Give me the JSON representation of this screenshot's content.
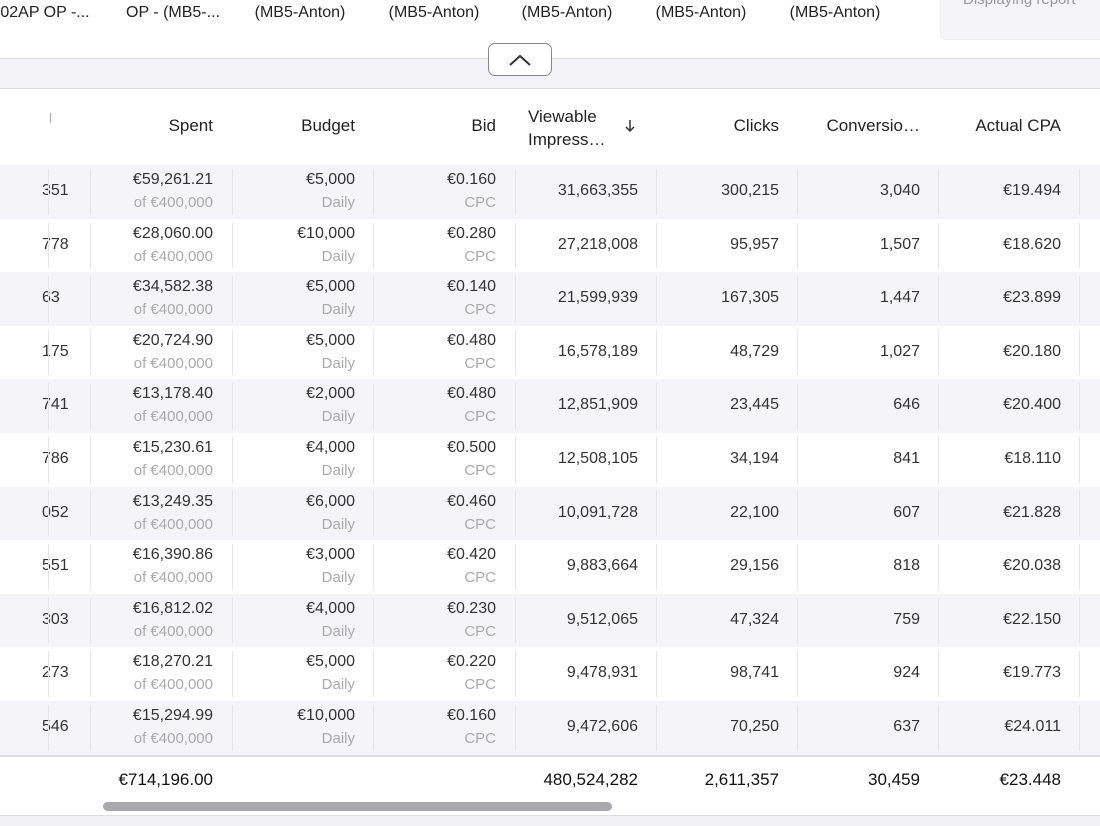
{
  "tabs": [
    "02AP OP -...",
    "OP - (MB5-...",
    "(MB5-Anton)",
    "(MB5-Anton)",
    "(MB5-Anton)",
    "(MB5-Anton)",
    "(MB5-Anton)"
  ],
  "report_note": "Displaying report",
  "table": {
    "headers": {
      "spent": "Spent",
      "budget": "Budget",
      "bid": "Bid",
      "impressions": "Viewable Impress…",
      "clicks": "Clicks",
      "conversions": "Conversio…",
      "cpa": "Actual CPA"
    },
    "rows": [
      {
        "id": "351",
        "spent": "€59,261.21",
        "spent_of": "of €400,000",
        "budget": "€5,000",
        "budget_type": "Daily",
        "bid": "€0.160",
        "bid_type": "CPC",
        "impressions": "31,663,355",
        "clicks": "300,215",
        "conversions": "3,040",
        "cpa": "€19.494"
      },
      {
        "id": "778",
        "spent": "€28,060.00",
        "spent_of": "of €400,000",
        "budget": "€10,000",
        "budget_type": "Daily",
        "bid": "€0.280",
        "bid_type": "CPC",
        "impressions": "27,218,008",
        "clicks": "95,957",
        "conversions": "1,507",
        "cpa": "€18.620"
      },
      {
        "id": "63",
        "spent": "€34,582.38",
        "spent_of": "of €400,000",
        "budget": "€5,000",
        "budget_type": "Daily",
        "bid": "€0.140",
        "bid_type": "CPC",
        "impressions": "21,599,939",
        "clicks": "167,305",
        "conversions": "1,447",
        "cpa": "€23.899"
      },
      {
        "id": "175",
        "spent": "€20,724.90",
        "spent_of": "of €400,000",
        "budget": "€5,000",
        "budget_type": "Daily",
        "bid": "€0.480",
        "bid_type": "CPC",
        "impressions": "16,578,189",
        "clicks": "48,729",
        "conversions": "1,027",
        "cpa": "€20.180"
      },
      {
        "id": "741",
        "spent": "€13,178.40",
        "spent_of": "of €400,000",
        "budget": "€2,000",
        "budget_type": "Daily",
        "bid": "€0.480",
        "bid_type": "CPC",
        "impressions": "12,851,909",
        "clicks": "23,445",
        "conversions": "646",
        "cpa": "€20.400"
      },
      {
        "id": "786",
        "spent": "€15,230.61",
        "spent_of": "of €400,000",
        "budget": "€4,000",
        "budget_type": "Daily",
        "bid": "€0.500",
        "bid_type": "CPC",
        "impressions": "12,508,105",
        "clicks": "34,194",
        "conversions": "841",
        "cpa": "€18.110"
      },
      {
        "id": "052",
        "spent": "€13,249.35",
        "spent_of": "of €400,000",
        "budget": "€6,000",
        "budget_type": "Daily",
        "bid": "€0.460",
        "bid_type": "CPC",
        "impressions": "10,091,728",
        "clicks": "22,100",
        "conversions": "607",
        "cpa": "€21.828"
      },
      {
        "id": "551",
        "spent": "€16,390.86",
        "spent_of": "of €400,000",
        "budget": "€3,000",
        "budget_type": "Daily",
        "bid": "€0.420",
        "bid_type": "CPC",
        "impressions": "9,883,664",
        "clicks": "29,156",
        "conversions": "818",
        "cpa": "€20.038"
      },
      {
        "id": "303",
        "spent": "€16,812.02",
        "spent_of": "of €400,000",
        "budget": "€4,000",
        "budget_type": "Daily",
        "bid": "€0.230",
        "bid_type": "CPC",
        "impressions": "9,512,065",
        "clicks": "47,324",
        "conversions": "759",
        "cpa": "€22.150"
      },
      {
        "id": "273",
        "spent": "€18,270.21",
        "spent_of": "of €400,000",
        "budget": "€5,000",
        "budget_type": "Daily",
        "bid": "€0.220",
        "bid_type": "CPC",
        "impressions": "9,478,931",
        "clicks": "98,741",
        "conversions": "924",
        "cpa": "€19.773"
      },
      {
        "id": "546",
        "spent": "€15,294.99",
        "spent_of": "of €400,000",
        "budget": "€10,000",
        "budget_type": "Daily",
        "bid": "€0.160",
        "bid_type": "CPC",
        "impressions": "9,472,606",
        "clicks": "70,250",
        "conversions": "637",
        "cpa": "€24.011"
      }
    ],
    "totals": {
      "spent": "€714,196.00",
      "impressions": "480,524,282",
      "clicks": "2,611,357",
      "conversions": "30,459",
      "cpa": "€23.448"
    }
  }
}
